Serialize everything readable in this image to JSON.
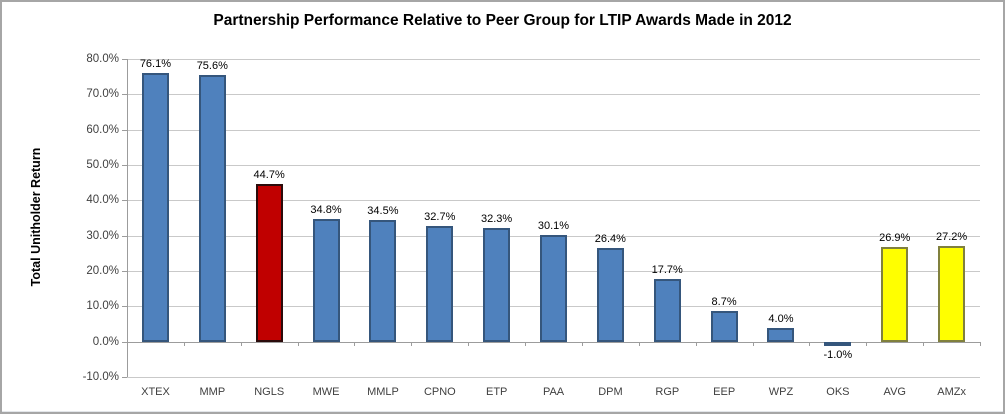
{
  "chart_data": {
    "type": "bar",
    "title": "Partnership Performance Relative to Peer Group for LTIP Awards Made in 2012",
    "xlabel": "",
    "ylabel": "Total Unitholder Return",
    "categories": [
      "XTEX",
      "MMP",
      "NGLS",
      "MWE",
      "MMLP",
      "CPNO",
      "ETP",
      "PAA",
      "DPM",
      "RGP",
      "EEP",
      "WPZ",
      "OKS",
      "AVG",
      "AMZx"
    ],
    "values": [
      76.1,
      75.6,
      44.7,
      34.8,
      34.5,
      32.7,
      32.3,
      30.1,
      26.4,
      17.7,
      8.7,
      4.0,
      -1.0,
      26.9,
      27.2
    ],
    "value_labels": [
      "76.1%",
      "75.6%",
      "44.7%",
      "34.8%",
      "34.5%",
      "32.7%",
      "32.3%",
      "30.1%",
      "26.4%",
      "17.7%",
      "8.7%",
      "4.0%",
      "-1.0%",
      "26.9%",
      "27.2%"
    ],
    "ylim": [
      -10,
      80
    ],
    "ytick_step": 10,
    "ytick_labels": [
      "80.0%",
      "70.0%",
      "60.0%",
      "50.0%",
      "40.0%",
      "30.0%",
      "20.0%",
      "10.0%",
      "0.0%",
      "-10.0%"
    ],
    "grid": true,
    "legend": "none",
    "bar_styles": {
      "default": {
        "fill": "#4F81BD",
        "stroke": "#35567C"
      },
      "highlight": {
        "fill": "#C00000",
        "stroke": "#2B0B0B"
      },
      "summary": {
        "fill": "#FFFF00",
        "stroke": "#80803D"
      }
    },
    "point_styles": [
      "default",
      "default",
      "highlight",
      "default",
      "default",
      "default",
      "default",
      "default",
      "default",
      "default",
      "default",
      "default",
      "default",
      "summary",
      "summary"
    ],
    "colors": {
      "gridline": "#c9c9c9",
      "axis": "#9c9c9c",
      "tick_label": "#3f3f3f",
      "value_label": "#000000",
      "title": "#000000",
      "background": "#ffffff"
    }
  }
}
